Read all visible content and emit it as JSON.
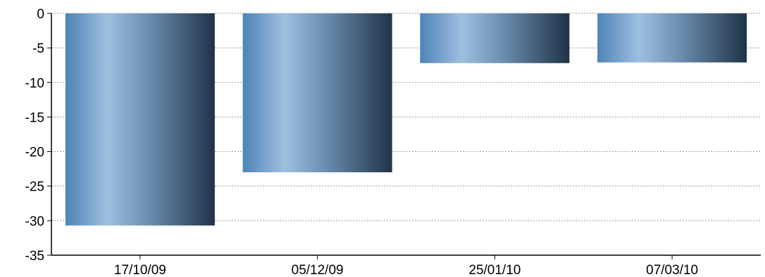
{
  "chart_data": {
    "type": "bar",
    "title": "",
    "xlabel": "",
    "ylabel": "",
    "categories": [
      "17/10/09",
      "05/12/09",
      "25/01/10",
      "07/03/10"
    ],
    "values": [
      -30.7,
      -23.0,
      -7.2,
      -7.1
    ],
    "ylim": [
      -35,
      0
    ],
    "yticks": [
      0,
      -5,
      -10,
      -15,
      -20,
      -25,
      -30,
      -35
    ],
    "ytick_labels": [
      "0",
      "-5",
      "-10",
      "-15",
      "-20",
      "-25",
      "-30",
      "-35"
    ],
    "grid": true,
    "legend": "none",
    "colors": {
      "bar_light": "#9ec0e0",
      "bar_mid": "#5f8fbf",
      "bar_dark": "#1f3347",
      "grid": "#999999",
      "axis": "#000000"
    }
  }
}
